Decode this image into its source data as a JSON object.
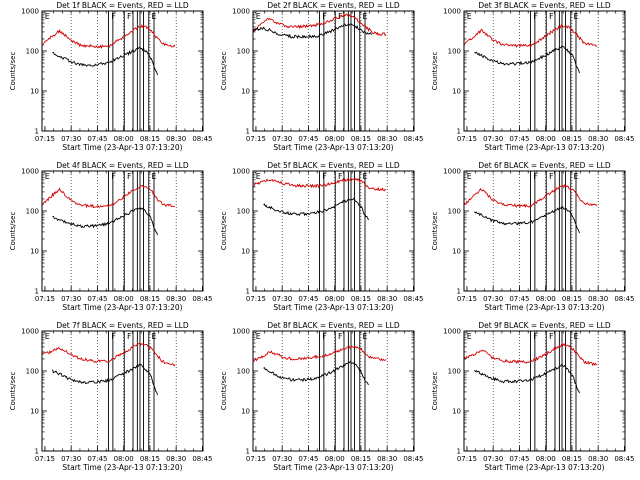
{
  "figure": {
    "x_time_zero": "07:13:20",
    "time_labels": [
      "07:15",
      "07:30",
      "07:45",
      "08:00",
      "08:15",
      "08:30",
      "08:45"
    ],
    "y_ticks": [
      1,
      10,
      100,
      1000
    ],
    "y_tick_labels": [
      "1",
      "10",
      "100",
      "1000"
    ],
    "xlabel": "Start Time (23-Apr-13 07:13:20)",
    "ylabel": "Counts/sec",
    "colors": {
      "events": "#000000",
      "lld": "#d40000",
      "axes": "#000000"
    }
  },
  "chart_data": [
    {
      "type": "line",
      "panel": 1,
      "title": "Det 1f BLACK = Events, RED = LLD",
      "xlabel": "Start Time (23-Apr-13 07:13:20)",
      "ylabel": "Counts/sec",
      "ylog": true,
      "ylim": [
        1,
        1000
      ],
      "xlim_minutes": [
        0,
        92
      ],
      "series": [
        {
          "name": "RED = LLD",
          "color": "#d40000",
          "x": [
            0,
            5,
            10,
            13,
            16,
            22,
            30,
            38,
            45,
            52,
            56,
            60,
            63,
            66,
            69,
            72,
            74,
            76
          ],
          "y": [
            140,
            220,
            320,
            250,
            190,
            140,
            130,
            130,
            200,
            330,
            420,
            380,
            300,
            200,
            150,
            140,
            135,
            130
          ]
        },
        {
          "name": "BLACK = Events",
          "color": "#000000",
          "x": [
            6,
            10,
            16,
            22,
            30,
            38,
            45,
            52,
            56,
            58,
            60,
            62,
            64,
            66
          ],
          "y": [
            90,
            75,
            55,
            45,
            45,
            50,
            70,
            100,
            120,
            110,
            90,
            70,
            40,
            25
          ]
        }
      ],
      "event_lines_minutes": [
        38,
        40.5,
        47,
        52,
        54.5,
        56,
        58,
        61,
        64
      ],
      "event_flags": [
        {
          "t": 1,
          "label": "E"
        },
        {
          "t": 39,
          "label": "F"
        },
        {
          "t": 48,
          "label": "F"
        },
        {
          "t": 62,
          "label": "E"
        }
      ]
    },
    {
      "type": "line",
      "panel": 2,
      "title": "Det 2f BLACK = Events, RED = LLD",
      "xlabel": "Start Time (23-Apr-13 07:13:20)",
      "ylabel": "Counts/sec",
      "ylog": true,
      "ylim": [
        1,
        1000
      ],
      "xlim_minutes": [
        0,
        92
      ],
      "series": [
        {
          "name": "RED = LLD",
          "color": "#d40000",
          "x": [
            0,
            4,
            8,
            12,
            18,
            25,
            32,
            40,
            47,
            53,
            58,
            63,
            68,
            72,
            76
          ],
          "y": [
            300,
            450,
            640,
            550,
            420,
            400,
            420,
            480,
            650,
            800,
            680,
            450,
            300,
            270,
            260
          ]
        },
        {
          "name": "BLACK = Events",
          "color": "#000000",
          "x": [
            0,
            5,
            10,
            15,
            22,
            30,
            38,
            45,
            52,
            56,
            60,
            64,
            68
          ],
          "y": [
            320,
            380,
            330,
            260,
            230,
            230,
            240,
            320,
            450,
            480,
            380,
            280,
            260
          ]
        }
      ],
      "event_lines_minutes": [
        38,
        40.5,
        47,
        52,
        54.5,
        56,
        58,
        61,
        64
      ],
      "event_flags": [
        {
          "t": 1,
          "label": "E"
        },
        {
          "t": 39,
          "label": "F"
        },
        {
          "t": 48,
          "label": "F"
        },
        {
          "t": 62,
          "label": "E"
        }
      ]
    },
    {
      "type": "line",
      "panel": 3,
      "title": "Det 3f BLACK = Events, RED = LLD",
      "xlabel": "Start Time (23-Apr-13 07:13:20)",
      "ylabel": "Counts/sec",
      "ylog": true,
      "ylim": [
        1,
        1000
      ],
      "xlim_minutes": [
        0,
        92
      ],
      "series": [
        {
          "name": "RED = LLD",
          "color": "#d40000",
          "x": [
            0,
            5,
            10,
            13,
            16,
            22,
            30,
            38,
            45,
            52,
            56,
            60,
            63,
            66,
            69,
            72,
            74,
            76
          ],
          "y": [
            140,
            220,
            330,
            260,
            195,
            145,
            135,
            135,
            210,
            340,
            430,
            390,
            310,
            210,
            155,
            145,
            140,
            135
          ]
        },
        {
          "name": "BLACK = Events",
          "color": "#000000",
          "x": [
            6,
            10,
            16,
            22,
            30,
            38,
            45,
            52,
            56,
            58,
            60,
            62,
            64,
            66
          ],
          "y": [
            95,
            78,
            58,
            48,
            48,
            52,
            72,
            105,
            125,
            115,
            95,
            75,
            45,
            28
          ]
        }
      ],
      "event_lines_minutes": [
        38,
        40.5,
        47,
        52,
        54.5,
        56,
        58,
        61,
        64
      ],
      "event_flags": [
        {
          "t": 1,
          "label": "E"
        },
        {
          "t": 39,
          "label": "F"
        },
        {
          "t": 48,
          "label": "F"
        },
        {
          "t": 62,
          "label": "E"
        }
      ]
    },
    {
      "type": "line",
      "panel": 4,
      "title": "Det 4f BLACK = Events, RED = LLD",
      "xlabel": "Start Time (23-Apr-13 07:13:20)",
      "ylabel": "Counts/sec",
      "ylog": true,
      "ylim": [
        1,
        1000
      ],
      "xlim_minutes": [
        0,
        92
      ],
      "series": [
        {
          "name": "RED = LLD",
          "color": "#d40000",
          "x": [
            0,
            5,
            10,
            13,
            16,
            22,
            30,
            38,
            45,
            52,
            56,
            60,
            63,
            66,
            69,
            72,
            74,
            76
          ],
          "y": [
            140,
            230,
            340,
            260,
            190,
            140,
            130,
            130,
            200,
            330,
            420,
            380,
            300,
            200,
            150,
            140,
            135,
            130
          ]
        },
        {
          "name": "BLACK = Events",
          "color": "#000000",
          "x": [
            6,
            10,
            16,
            22,
            30,
            38,
            45,
            52,
            56,
            58,
            60,
            62,
            64,
            66
          ],
          "y": [
            70,
            60,
            48,
            42,
            42,
            48,
            70,
            100,
            120,
            110,
            90,
            70,
            40,
            25
          ]
        }
      ],
      "event_lines_minutes": [
        38,
        40.5,
        47,
        52,
        54.5,
        56,
        58,
        61,
        64
      ],
      "event_flags": [
        {
          "t": 1,
          "label": "E"
        },
        {
          "t": 39,
          "label": "F"
        },
        {
          "t": 48,
          "label": "F"
        },
        {
          "t": 62,
          "label": "E"
        }
      ]
    },
    {
      "type": "line",
      "panel": 5,
      "title": "Det 5f BLACK = Events, RED = LLD",
      "xlabel": "Start Time (23-Apr-13 07:13:20)",
      "ylabel": "Counts/sec",
      "ylog": true,
      "ylim": [
        1,
        1000
      ],
      "xlim_minutes": [
        0,
        92
      ],
      "series": [
        {
          "name": "RED = LLD",
          "color": "#d40000",
          "x": [
            0,
            5,
            10,
            14,
            18,
            25,
            32,
            40,
            47,
            53,
            58,
            62,
            65,
            68,
            72,
            76
          ],
          "y": [
            450,
            520,
            620,
            560,
            480,
            430,
            420,
            430,
            520,
            600,
            640,
            560,
            420,
            360,
            350,
            340
          ]
        },
        {
          "name": "BLACK = Events",
          "color": "#000000",
          "x": [
            6,
            10,
            16,
            22,
            30,
            38,
            45,
            52,
            56,
            58,
            60,
            62,
            64,
            66
          ],
          "y": [
            150,
            120,
            95,
            85,
            85,
            95,
            120,
            170,
            200,
            190,
            160,
            120,
            80,
            60
          ]
        }
      ],
      "event_lines_minutes": [
        38,
        40.5,
        47,
        52,
        54.5,
        56,
        58,
        61,
        64
      ],
      "event_flags": [
        {
          "t": 1,
          "label": "E"
        },
        {
          "t": 39,
          "label": "F"
        },
        {
          "t": 48,
          "label": "F"
        },
        {
          "t": 62,
          "label": "E"
        }
      ]
    },
    {
      "type": "line",
      "panel": 6,
      "title": "Det 6f BLACK = Events, RED = LLD",
      "xlabel": "Start Time (23-Apr-13 07:13:20)",
      "ylabel": "Counts/sec",
      "ylog": true,
      "ylim": [
        1,
        1000
      ],
      "xlim_minutes": [
        0,
        92
      ],
      "series": [
        {
          "name": "RED = LLD",
          "color": "#d40000",
          "x": [
            0,
            5,
            10,
            13,
            16,
            22,
            30,
            38,
            45,
            52,
            56,
            60,
            63,
            66,
            69,
            72,
            74,
            76
          ],
          "y": [
            140,
            230,
            350,
            270,
            195,
            145,
            135,
            135,
            210,
            340,
            430,
            390,
            310,
            210,
            155,
            145,
            140,
            135
          ]
        },
        {
          "name": "BLACK = Events",
          "color": "#000000",
          "x": [
            6,
            10,
            16,
            22,
            30,
            38,
            45,
            52,
            56,
            58,
            60,
            62,
            64,
            66
          ],
          "y": [
            95,
            78,
            58,
            48,
            48,
            52,
            72,
            105,
            125,
            115,
            95,
            75,
            45,
            28
          ]
        }
      ],
      "event_lines_minutes": [
        38,
        40.5,
        47,
        52,
        54.5,
        56,
        58,
        61,
        64
      ],
      "event_flags": [
        {
          "t": 1,
          "label": "E"
        },
        {
          "t": 39,
          "label": "F"
        },
        {
          "t": 48,
          "label": "F"
        },
        {
          "t": 62,
          "label": "E"
        }
      ]
    },
    {
      "type": "line",
      "panel": 7,
      "title": "Det 7f BLACK = Events, RED = LLD",
      "xlabel": "Start Time (23-Apr-13 07:13:20)",
      "ylabel": "Counts/sec",
      "ylog": true,
      "ylim": [
        1,
        1000
      ],
      "xlim_minutes": [
        0,
        92
      ],
      "series": [
        {
          "name": "RED = LLD",
          "color": "#d40000",
          "x": [
            0,
            5,
            10,
            13,
            16,
            22,
            30,
            38,
            45,
            52,
            56,
            60,
            63,
            66,
            69,
            72,
            74,
            76
          ],
          "y": [
            260,
            300,
            380,
            330,
            260,
            200,
            175,
            175,
            260,
            400,
            480,
            440,
            350,
            240,
            170,
            155,
            150,
            145
          ]
        },
        {
          "name": "BLACK = Events",
          "color": "#000000",
          "x": [
            6,
            10,
            16,
            22,
            30,
            38,
            45,
            52,
            56,
            58,
            60,
            62,
            64,
            66
          ],
          "y": [
            100,
            85,
            62,
            52,
            52,
            58,
            80,
            115,
            140,
            125,
            100,
            75,
            45,
            25
          ]
        }
      ],
      "event_lines_minutes": [
        38,
        40.5,
        47,
        52,
        54.5,
        56,
        58,
        61,
        64
      ],
      "event_flags": [
        {
          "t": 1,
          "label": "E"
        },
        {
          "t": 39,
          "label": "F"
        },
        {
          "t": 48,
          "label": "F"
        },
        {
          "t": 62,
          "label": "E"
        }
      ]
    },
    {
      "type": "line",
      "panel": 8,
      "title": "Det 8f BLACK = Events, RED = LLD",
      "xlabel": "Start Time (23-Apr-13 07:13:20)",
      "ylabel": "Counts/sec",
      "ylog": true,
      "ylim": [
        1,
        1000
      ],
      "xlim_minutes": [
        0,
        92
      ],
      "series": [
        {
          "name": "RED = LLD",
          "color": "#d40000",
          "x": [
            0,
            5,
            10,
            14,
            18,
            25,
            32,
            40,
            47,
            53,
            58,
            62,
            65,
            68,
            72,
            76
          ],
          "y": [
            180,
            220,
            300,
            260,
            210,
            200,
            220,
            230,
            300,
            370,
            420,
            340,
            250,
            210,
            200,
            195
          ]
        },
        {
          "name": "BLACK = Events",
          "color": "#000000",
          "x": [
            6,
            10,
            16,
            22,
            30,
            38,
            45,
            52,
            56,
            58,
            60,
            62,
            64,
            66
          ],
          "y": [
            120,
            95,
            70,
            60,
            60,
            70,
            95,
            140,
            170,
            150,
            120,
            90,
            60,
            45
          ]
        }
      ],
      "event_lines_minutes": [
        38,
        40.5,
        47,
        52,
        54.5,
        56,
        58,
        61,
        64
      ],
      "event_flags": [
        {
          "t": 1,
          "label": "E"
        },
        {
          "t": 39,
          "label": "F"
        },
        {
          "t": 48,
          "label": "F"
        },
        {
          "t": 62,
          "label": "E"
        }
      ]
    },
    {
      "type": "line",
      "panel": 9,
      "title": "Det 9f BLACK = Events, RED = LLD",
      "xlabel": "Start Time (23-Apr-13 07:13:20)",
      "ylabel": "Counts/sec",
      "ylog": true,
      "ylim": [
        1,
        1000
      ],
      "xlim_minutes": [
        0,
        92
      ],
      "series": [
        {
          "name": "RED = LLD",
          "color": "#d40000",
          "x": [
            0,
            5,
            10,
            13,
            16,
            22,
            30,
            38,
            45,
            52,
            56,
            60,
            63,
            66,
            69,
            72,
            74,
            76
          ],
          "y": [
            200,
            250,
            330,
            280,
            220,
            180,
            170,
            170,
            240,
            360,
            460,
            420,
            330,
            230,
            170,
            155,
            150,
            145
          ]
        },
        {
          "name": "BLACK = Events",
          "color": "#000000",
          "x": [
            6,
            10,
            16,
            22,
            30,
            38,
            45,
            52,
            56,
            58,
            60,
            62,
            64,
            66
          ],
          "y": [
            100,
            85,
            65,
            55,
            55,
            60,
            80,
            115,
            140,
            125,
            100,
            75,
            45,
            28
          ]
        }
      ],
      "event_lines_minutes": [
        38,
        40.5,
        47,
        52,
        54.5,
        56,
        58,
        61,
        64
      ],
      "event_flags": [
        {
          "t": 1,
          "label": "E"
        },
        {
          "t": 39,
          "label": "F"
        },
        {
          "t": 48,
          "label": "F"
        },
        {
          "t": 62,
          "label": "E"
        }
      ]
    }
  ]
}
